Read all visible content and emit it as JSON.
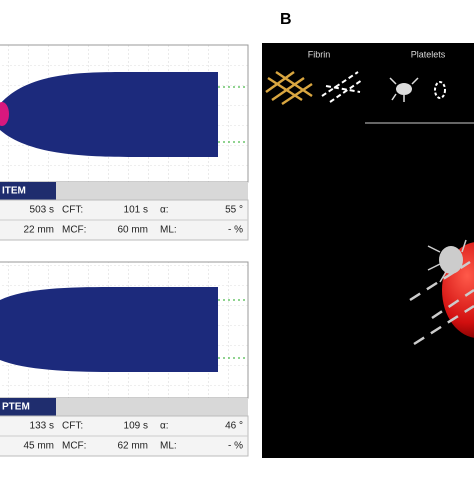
{
  "figure_label": "B",
  "panels": [
    {
      "label": "ITEM",
      "rows": [
        [
          "503 s",
          "CFT:",
          "101 s",
          "α:",
          "55 °"
        ],
        [
          "22 mm",
          "MCF:",
          "60 mm",
          "ML:",
          "- %"
        ]
      ]
    },
    {
      "label": "PTEM",
      "rows": [
        [
          "133 s",
          "CFT:",
          "109 s",
          "α:",
          "46 °"
        ],
        [
          "45 mm",
          "MCF:",
          "62 mm",
          "ML:",
          "- %"
        ]
      ]
    }
  ],
  "illustration": {
    "fibrin_label": "Fibrin",
    "platelets_label": "Platelets"
  }
}
